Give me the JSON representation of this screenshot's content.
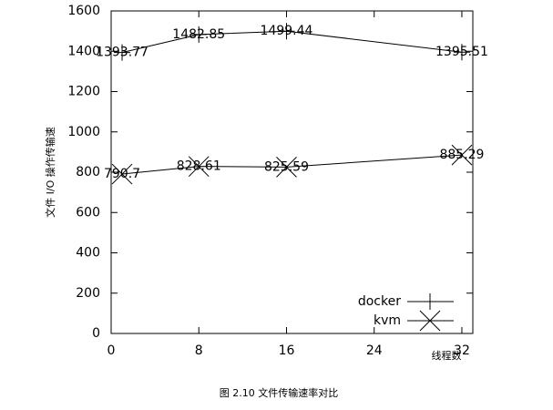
{
  "chart_data": {
    "type": "line",
    "x": [
      1,
      8,
      16,
      32
    ],
    "series": [
      {
        "name": "docker",
        "color": "#000000",
        "marker": "plus",
        "values": [
          1393.77,
          1482.85,
          1499.44,
          1395.51
        ]
      },
      {
        "name": "kvm",
        "color": "#000000",
        "marker": "cross",
        "values": [
          790.7,
          828.61,
          825.59,
          885.29
        ]
      }
    ],
    "xlim": [
      0,
      33
    ],
    "xticks": [
      0,
      8,
      16,
      24,
      32
    ],
    "ylim": [
      0,
      1600
    ],
    "yticks": [
      0,
      200,
      400,
      600,
      800,
      1000,
      1200,
      1400,
      1600
    ],
    "ylabel": "文件 I/O 操作传输速",
    "xlabel": "线程数",
    "caption": "图 2.10  文件传输速率对比",
    "legend": "bottom-right"
  }
}
